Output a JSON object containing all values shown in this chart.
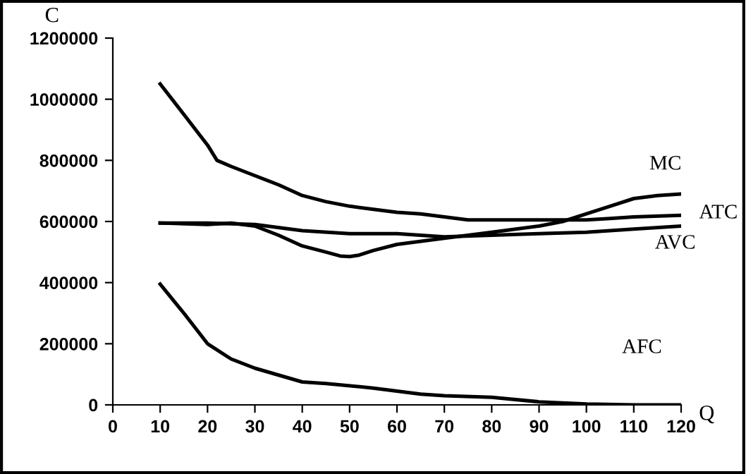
{
  "chart_data": {
    "type": "line",
    "xlabel": "Q",
    "ylabel": "C",
    "xlim": [
      0,
      120
    ],
    "xticks": [
      0,
      10,
      20,
      30,
      40,
      50,
      60,
      70,
      80,
      90,
      100,
      110,
      120
    ],
    "ylim": [
      0,
      1200000
    ],
    "yticks": [
      0,
      200000,
      400000,
      600000,
      800000,
      1000000,
      1200000
    ],
    "grid": false,
    "legend": false,
    "marker": "none",
    "line_style": "solid",
    "series": [
      {
        "name": "MC",
        "color": "#000000",
        "x": [
          10,
          20,
          25,
          30,
          35,
          40,
          45,
          48,
          50,
          52,
          55,
          60,
          70,
          80,
          90,
          95,
          100,
          105,
          110,
          115,
          120
        ],
        "values": [
          595000,
          590000,
          595000,
          585000,
          555000,
          520000,
          500000,
          487000,
          485000,
          490000,
          505000,
          525000,
          545000,
          565000,
          585000,
          600000,
          625000,
          650000,
          675000,
          685000,
          690000
        ]
      },
      {
        "name": "ATC",
        "color": "#000000",
        "x": [
          10,
          15,
          20,
          22,
          25,
          30,
          35,
          40,
          45,
          50,
          55,
          60,
          65,
          70,
          75,
          80,
          90,
          100,
          105,
          110,
          120
        ],
        "values": [
          1050000,
          950000,
          850000,
          800000,
          780000,
          750000,
          720000,
          685000,
          665000,
          650000,
          640000,
          630000,
          625000,
          615000,
          605000,
          605000,
          605000,
          605000,
          610000,
          615000,
          620000
        ]
      },
      {
        "name": "AVC",
        "color": "#000000",
        "x": [
          10,
          20,
          30,
          40,
          50,
          60,
          70,
          80,
          90,
          100,
          110,
          120
        ],
        "values": [
          595000,
          595000,
          590000,
          570000,
          560000,
          560000,
          550000,
          555000,
          560000,
          565000,
          575000,
          585000
        ]
      },
      {
        "name": "AFC",
        "color": "#000000",
        "x": [
          10,
          15,
          20,
          25,
          30,
          40,
          45,
          55,
          65,
          70,
          80,
          90,
          100,
          110,
          120
        ],
        "values": [
          395000,
          300000,
          200000,
          150000,
          120000,
          75000,
          70000,
          55000,
          35000,
          30000,
          25000,
          10000,
          3000,
          0,
          0
        ]
      }
    ]
  }
}
